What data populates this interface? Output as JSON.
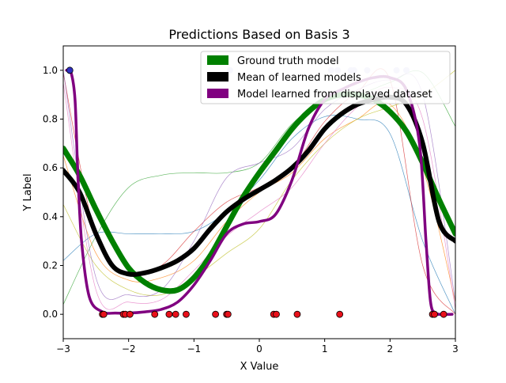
{
  "chart_data": {
    "type": "line",
    "title": "Predictions Based on Basis 3",
    "xlabel": "X Value",
    "ylabel": "Y Label",
    "xlim": [
      -3,
      3
    ],
    "ylim": [
      -0.1,
      1.1
    ],
    "xticks": [
      -3,
      -2,
      -1,
      0,
      1,
      2,
      3
    ],
    "yticks": [
      0.0,
      0.2,
      0.4,
      0.6,
      0.8,
      1.0
    ],
    "xtick_labels": [
      "−3",
      "−2",
      "−1",
      "0",
      "1",
      "2",
      "3"
    ],
    "ytick_labels": [
      "0.0",
      "0.2",
      "0.4",
      "0.6",
      "0.8",
      "1.0"
    ],
    "legend_position": "upper-right",
    "series": [
      {
        "name": "Ground truth model",
        "color": "#008000",
        "role": "main",
        "x": [
          -3,
          -2.75,
          -2.5,
          -2.25,
          -2,
          -1.75,
          -1.5,
          -1.25,
          -1,
          -0.75,
          -0.5,
          -0.25,
          0,
          0.25,
          0.5,
          0.75,
          1,
          1.25,
          1.5,
          1.75,
          2,
          2.25,
          2.5,
          2.75,
          3
        ],
        "y": [
          0.68,
          0.57,
          0.43,
          0.3,
          0.19,
          0.13,
          0.1,
          0.1,
          0.15,
          0.24,
          0.36,
          0.48,
          0.58,
          0.67,
          0.76,
          0.83,
          0.88,
          0.9,
          0.9,
          0.88,
          0.83,
          0.75,
          0.62,
          0.47,
          0.33
        ]
      },
      {
        "name": "Mean of learned models",
        "color": "#000000",
        "role": "main",
        "x": [
          -3,
          -2.75,
          -2.5,
          -2.25,
          -2,
          -1.75,
          -1.5,
          -1.25,
          -1,
          -0.75,
          -0.5,
          -0.25,
          0,
          0.25,
          0.5,
          0.75,
          1,
          1.25,
          1.5,
          1.75,
          2,
          2.25,
          2.5,
          2.75,
          3
        ],
        "y": [
          0.59,
          0.5,
          0.33,
          0.2,
          0.165,
          0.17,
          0.19,
          0.22,
          0.27,
          0.35,
          0.42,
          0.47,
          0.51,
          0.55,
          0.6,
          0.67,
          0.76,
          0.82,
          0.86,
          0.88,
          0.89,
          0.86,
          0.7,
          0.38,
          0.3
        ]
      },
      {
        "name": "Model learned from displayed dataset",
        "color": "#800080",
        "role": "main",
        "x": [
          -2.95,
          -2.88,
          -2.82,
          -2.78,
          -2.72,
          -2.6,
          -2.4,
          -2.2,
          -2,
          -1.75,
          -1.5,
          -1.25,
          -1,
          -0.75,
          -0.5,
          -0.25,
          0,
          0.25,
          0.5,
          0.75,
          1,
          1.25,
          1.5,
          1.75,
          2,
          2.25,
          2.45,
          2.55,
          2.62,
          2.7,
          2.8,
          2.95
        ],
        "y": [
          1.0,
          0.99,
          0.88,
          0.6,
          0.3,
          0.07,
          0.01,
          0.005,
          0.005,
          0.01,
          0.02,
          0.05,
          0.12,
          0.22,
          0.33,
          0.37,
          0.38,
          0.41,
          0.55,
          0.76,
          0.88,
          0.92,
          0.95,
          0.97,
          0.97,
          0.92,
          0.7,
          0.3,
          0.05,
          0.005,
          0.0,
          0.0
        ]
      },
      {
        "name": "",
        "color": "#2ca02c",
        "role": "thin",
        "x": [
          -3,
          -2.5,
          -2,
          -1.5,
          -1,
          -0.5,
          0,
          0.5,
          1,
          1.5,
          2,
          2.5,
          3
        ],
        "y": [
          0.04,
          0.32,
          0.52,
          0.57,
          0.58,
          0.58,
          0.62,
          0.78,
          0.88,
          0.9,
          0.95,
          0.99,
          0.77
        ]
      },
      {
        "name": "",
        "color": "#1f77b4",
        "role": "thin",
        "x": [
          -3,
          -2.5,
          -2,
          -1.5,
          -1,
          -0.5,
          0,
          0.5,
          1,
          1.5,
          2,
          2.5,
          3
        ],
        "y": [
          0.22,
          0.33,
          0.33,
          0.33,
          0.34,
          0.42,
          0.55,
          0.72,
          0.81,
          0.8,
          0.74,
          0.3,
          0.0
        ]
      },
      {
        "name": "",
        "color": "#d62728",
        "role": "thin",
        "x": [
          -3,
          -2.5,
          -2,
          -1.5,
          -1,
          -0.5,
          0,
          0.5,
          1,
          1.5,
          2,
          2.5,
          3
        ],
        "y": [
          0.99,
          0.32,
          0.17,
          0.2,
          0.34,
          0.46,
          0.52,
          0.6,
          0.79,
          0.91,
          0.96,
          0.2,
          0.0
        ]
      },
      {
        "name": "",
        "color": "#ff7f0e",
        "role": "thin",
        "x": [
          -3,
          -2.5,
          -2,
          -1.5,
          -1,
          -0.5,
          0,
          0.5,
          1,
          1.5,
          2,
          2.5,
          3
        ],
        "y": [
          0.65,
          0.25,
          0.14,
          0.15,
          0.22,
          0.38,
          0.5,
          0.58,
          0.72,
          0.8,
          0.86,
          0.6,
          0.05
        ]
      },
      {
        "name": "",
        "color": "#bcbd22",
        "role": "thin",
        "x": [
          -3,
          -2.5,
          -2,
          -1.5,
          -1,
          -0.5,
          0,
          0.5,
          1,
          1.5,
          2,
          2.5,
          3
        ],
        "y": [
          0.45,
          0.2,
          0.1,
          0.08,
          0.15,
          0.25,
          0.35,
          0.55,
          0.7,
          0.8,
          0.85,
          0.9,
          1.0
        ]
      },
      {
        "name": "",
        "color": "#9467bd",
        "role": "thin",
        "x": [
          -3,
          -2.5,
          -2,
          -1.5,
          -1,
          -0.5,
          0,
          0.5,
          1,
          1.5,
          2,
          2.5,
          3
        ],
        "y": [
          1.0,
          0.15,
          0.08,
          0.1,
          0.3,
          0.56,
          0.62,
          0.68,
          0.84,
          0.92,
          0.96,
          0.9,
          0.05
        ]
      },
      {
        "name": "",
        "color": "#e377c2",
        "role": "thin",
        "x": [
          -3,
          -2.5,
          -2,
          -1.5,
          -1,
          -0.5,
          0,
          0.5,
          1,
          1.5,
          2,
          2.5,
          3
        ],
        "y": [
          0.95,
          0.1,
          0.05,
          0.06,
          0.18,
          0.32,
          0.42,
          0.52,
          0.7,
          0.85,
          0.93,
          0.8,
          0.02
        ]
      }
    ],
    "points_y0": [
      -2.4,
      -2.38,
      -2.08,
      -2.05,
      -1.98,
      -1.6,
      -1.38,
      -1.28,
      -1.12,
      -0.67,
      -0.5,
      -0.48,
      0.22,
      0.26,
      0.58,
      1.23,
      2.65,
      2.68,
      2.82
    ],
    "points_y1": [
      -2.9,
      -0.45,
      1.1,
      1.2,
      1.4,
      1.45,
      1.65,
      2.1,
      2.25
    ],
    "point_y0_color": "#e8101a",
    "point_y1_color": "#c8c8f0"
  },
  "legend": {
    "items": [
      {
        "label": "Ground truth model",
        "color": "#008000"
      },
      {
        "label": "Mean of learned models",
        "color": "#000000"
      },
      {
        "label": "Model learned from displayed dataset",
        "color": "#800080"
      }
    ]
  }
}
